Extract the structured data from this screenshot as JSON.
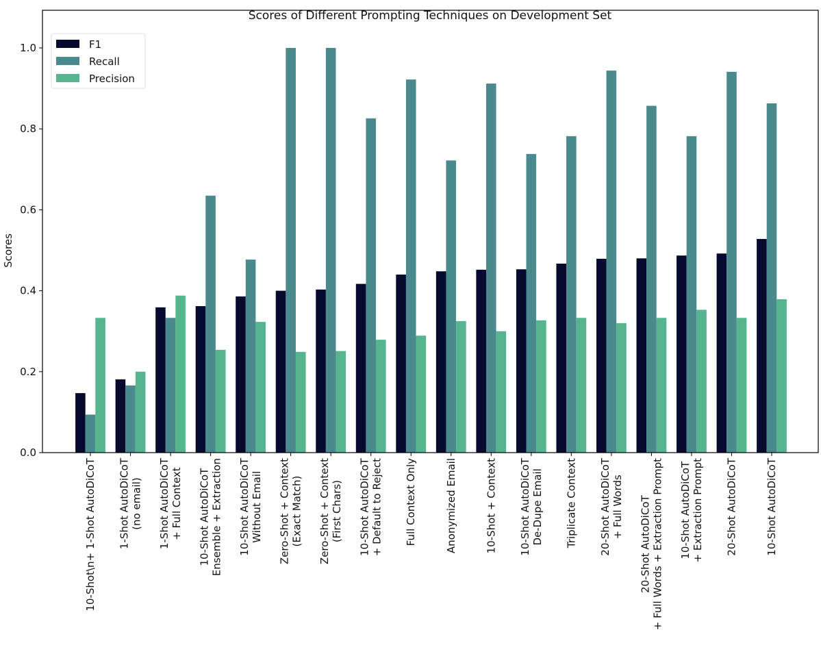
{
  "chart_data": {
    "type": "bar",
    "title": "Scores of Different Prompting Techniques on Development Set",
    "xlabel": "",
    "ylabel": "Scores",
    "ylim": [
      0,
      1.05
    ],
    "yticks": [
      "0.0",
      "0.2",
      "0.4",
      "0.6",
      "0.8",
      "1.0"
    ],
    "grid": false,
    "legend_placement": "top-left",
    "categories": [
      [
        "10-Shot\\n+ 1-Shot AutoDiCoT"
      ],
      [
        "1-Shot AutoDiCoT",
        "(no email)"
      ],
      [
        "1-Shot AutoDiCoT",
        "+ Full Context"
      ],
      [
        "10-Shot AutoDiCoT",
        "Ensemble + Extraction"
      ],
      [
        "10-Shot AutoDiCoT",
        "Without Email"
      ],
      [
        "Zero-Shot + Context",
        "(Exact Match)"
      ],
      [
        "Zero-Shot + Context",
        "(First Chars)"
      ],
      [
        "10-Shot AutoDiCoT",
        "+ Default to Reject"
      ],
      [
        "Full Context Only"
      ],
      [
        "Anonymized Email"
      ],
      [
        "10-Shot + Context"
      ],
      [
        "10-Shot AutoDiCoT",
        "De-Dupe Email"
      ],
      [
        "Triplicate Context"
      ],
      [
        "20-Shot AutoDiCoT",
        "+ Full Words"
      ],
      [
        "20-Shot AutoDiCoT",
        "+ Full Words + Extraction Prompt"
      ],
      [
        "10-Shot AutoDiCoT",
        "+ Extraction Prompt"
      ],
      [
        "20-Shot AutoDiCoT"
      ],
      [
        "10-Shot AutoDiCoT"
      ]
    ],
    "series": [
      {
        "name": "F1",
        "color": "#050a2e",
        "values": [
          0.147,
          0.181,
          0.359,
          0.362,
          0.386,
          0.4,
          0.403,
          0.417,
          0.44,
          0.448,
          0.452,
          0.453,
          0.467,
          0.479,
          0.48,
          0.487,
          0.492,
          0.528
        ]
      },
      {
        "name": "Recall",
        "color": "#4a8a8e",
        "values": [
          0.094,
          0.166,
          0.333,
          0.635,
          0.477,
          1.0,
          1.0,
          0.826,
          0.922,
          0.722,
          0.912,
          0.738,
          0.782,
          0.944,
          0.857,
          0.782,
          0.941,
          0.863
        ]
      },
      {
        "name": "Precision",
        "color": "#56b58e",
        "values": [
          0.333,
          0.2,
          0.388,
          0.254,
          0.323,
          0.249,
          0.251,
          0.279,
          0.289,
          0.325,
          0.3,
          0.327,
          0.333,
          0.32,
          0.333,
          0.353,
          0.333,
          0.379
        ]
      }
    ]
  }
}
